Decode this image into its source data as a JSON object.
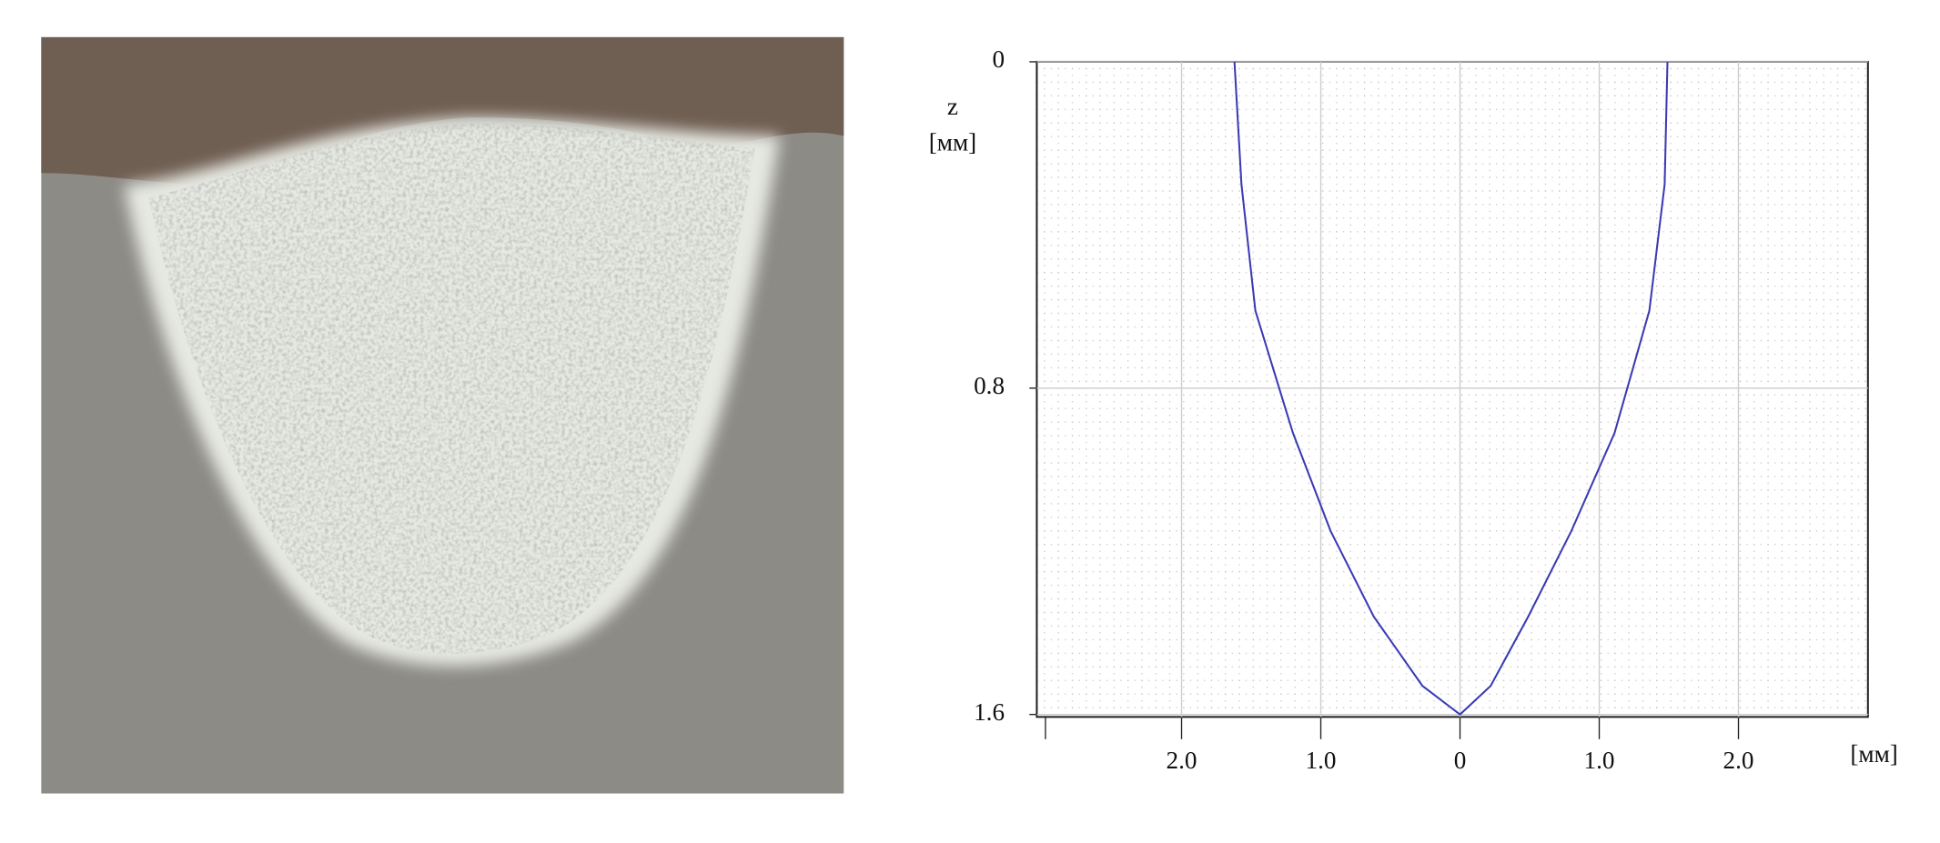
{
  "chart_data": {
    "type": "line",
    "y_label": "z",
    "y_unit": "[мм]",
    "x_unit": "[мм]",
    "x": [
      -1.62,
      -1.57,
      -1.47,
      -1.2,
      -0.93,
      -0.62,
      -0.27,
      0,
      0.22,
      0.49,
      0.8,
      1.11,
      1.36,
      1.47,
      1.49
    ],
    "series": [
      {
        "color": "#3a3ab4",
        "values": [
          0,
          0.3,
          0.61,
          0.91,
          1.15,
          1.36,
          1.53,
          1.6,
          1.53,
          1.36,
          1.15,
          0.91,
          0.61,
          0.3,
          0
        ]
      }
    ],
    "xlim": [
      -3.04,
      2.93
    ],
    "ylim": [
      0,
      1.6
    ],
    "y_inverted": true,
    "xticks": [
      {
        "value": -2,
        "label": "2.0"
      },
      {
        "value": -1,
        "label": "1.0"
      },
      0,
      {
        "value": 1,
        "label": "1.0"
      },
      {
        "value": 2,
        "label": "2.0"
      }
    ],
    "yticks": [
      0,
      0.8,
      1.6
    ],
    "grid": true
  }
}
